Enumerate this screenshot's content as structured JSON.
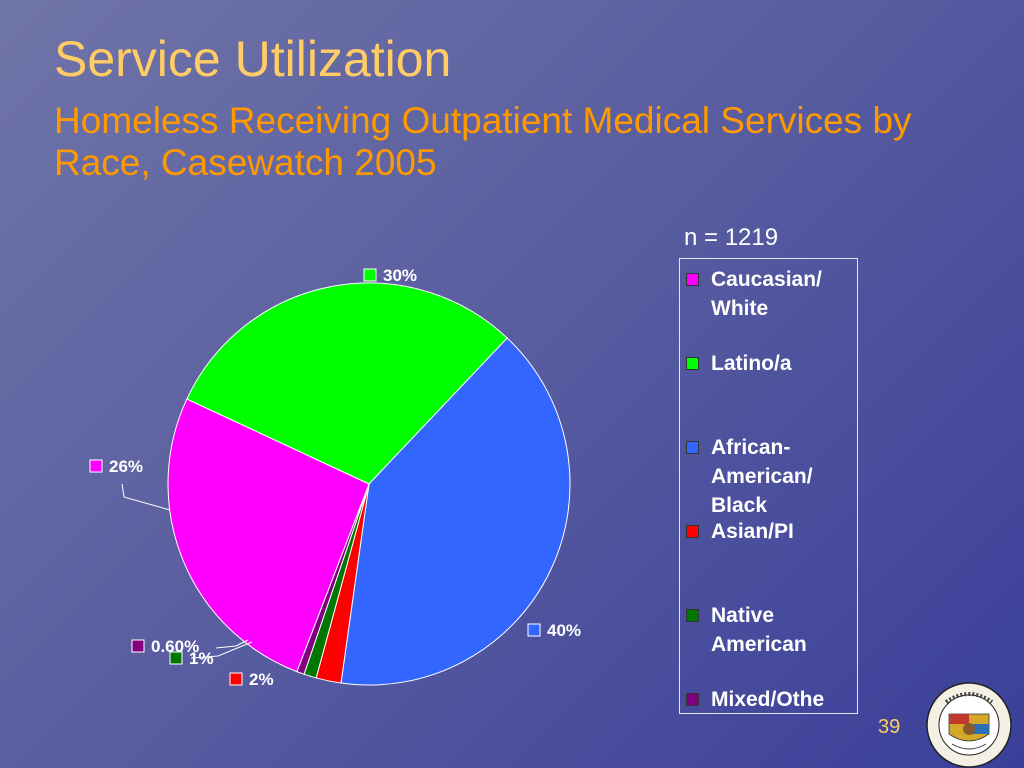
{
  "slide": {
    "title": "Service Utilization",
    "subtitle": "Homeless Receiving Outpatient Medical Services by Race, Casewatch 2005",
    "n_label": "n = 1219",
    "page_number": "39",
    "seal_text": "COUNTY OF LOS ANGELES · CALIFORNIA"
  },
  "chart_data": {
    "type": "pie",
    "start_angle_deg": -155,
    "direction": "clockwise",
    "slices": [
      {
        "name": "Latino/a",
        "label": "30%",
        "value": 30,
        "color": "#00ff00"
      },
      {
        "name": "African-American/ Black",
        "label": "40%",
        "value": 40,
        "color": "#3366ff"
      },
      {
        "name": "Asian/PI",
        "label": "2%",
        "value": 2,
        "color": "#ff0000"
      },
      {
        "name": "Native American",
        "label": "1%",
        "value": 1,
        "color": "#007700"
      },
      {
        "name": "Mixed/Othe",
        "label": "0.60%",
        "value": 0.6,
        "color": "#800080"
      },
      {
        "name": "Caucasian/ White",
        "label": "26%",
        "value": 26,
        "color": "#ff00ff"
      }
    ],
    "legend": {
      "placement": "right",
      "items": [
        {
          "label": "Caucasian/ White",
          "color": "#ff00ff"
        },
        {
          "label": "Latino/a",
          "color": "#00ff00"
        },
        {
          "label": "African- American/ Black",
          "color": "#3366ff"
        },
        {
          "label": "Asian/PI",
          "color": "#ff0000"
        },
        {
          "label": "Native American",
          "color": "#007700"
        },
        {
          "label": "Mixed/Othe",
          "color": "#800080"
        }
      ]
    }
  }
}
